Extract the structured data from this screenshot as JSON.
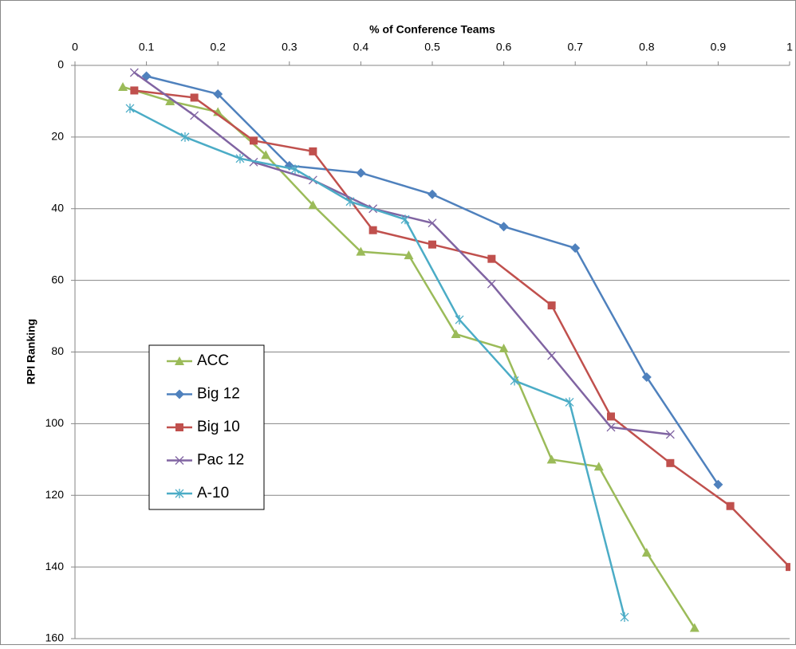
{
  "chart_data": {
    "type": "line",
    "xlabel": "% of Conference Teams",
    "ylabel": "RPI Ranking",
    "xlim": [
      0,
      1
    ],
    "xticks": [
      0,
      0.1,
      0.2,
      0.3,
      0.4,
      0.5,
      0.6,
      0.7,
      0.8,
      0.9,
      1
    ],
    "ylim": [
      0,
      160
    ],
    "yticks": [
      0,
      20,
      40,
      60,
      80,
      100,
      120,
      140,
      160
    ],
    "y_inverted": true,
    "x_axis_position": "top",
    "grid": true,
    "legend": "left",
    "series": [
      {
        "name": "ACC",
        "color": "#9bbb59",
        "marker": "triangle",
        "x": [
          0.067,
          0.133,
          0.2,
          0.267,
          0.333,
          0.4,
          0.467,
          0.533,
          0.6,
          0.667,
          0.733,
          0.8,
          0.867
        ],
        "values": [
          6,
          10,
          13,
          25,
          39,
          52,
          53,
          75,
          79,
          110,
          112,
          136,
          157
        ]
      },
      {
        "name": "Big 12",
        "color": "#4f81bd",
        "marker": "diamond",
        "x": [
          0.1,
          0.2,
          0.3,
          0.4,
          0.5,
          0.6,
          0.7,
          0.8,
          0.9
        ],
        "values": [
          3,
          8,
          28,
          30,
          36,
          45,
          51,
          87,
          117
        ]
      },
      {
        "name": "Big 10",
        "color": "#c0504d",
        "marker": "square",
        "x": [
          0.083,
          0.167,
          0.25,
          0.333,
          0.417,
          0.5,
          0.583,
          0.667,
          0.75,
          0.833,
          0.917,
          1
        ],
        "values": [
          7,
          9,
          21,
          24,
          46,
          50,
          54,
          67,
          98,
          111,
          123,
          140
        ]
      },
      {
        "name": "Pac 12",
        "color": "#8064a2",
        "marker": "x",
        "x": [
          0.083,
          0.167,
          0.25,
          0.333,
          0.417,
          0.5,
          0.583,
          0.667,
          0.75,
          0.833
        ],
        "values": [
          2,
          14,
          27,
          32,
          40,
          44,
          61,
          81,
          101,
          103
        ]
      },
      {
        "name": "A-10",
        "color": "#4bacc6",
        "marker": "star",
        "x": [
          0.077,
          0.154,
          0.231,
          0.308,
          0.385,
          0.462,
          0.538,
          0.615,
          0.692,
          0.769
        ],
        "values": [
          12,
          20,
          26,
          29,
          38,
          43,
          71,
          88,
          94,
          154
        ]
      }
    ]
  }
}
